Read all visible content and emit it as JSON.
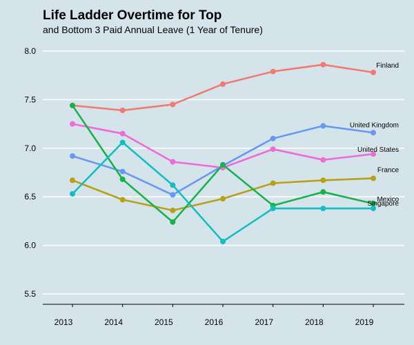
{
  "title": "Life Ladder Overtime for Top",
  "subtitle": "and Bottom 3 Paid Annual Leave (1 Year of Tenure)",
  "chart_data": {
    "type": "line",
    "x": [
      2013,
      2014,
      2015,
      2016,
      2017,
      2018,
      2019
    ],
    "ylim": [
      5.35,
      8.1
    ],
    "yticks": [
      5.5,
      6.0,
      6.5,
      7.0,
      7.5,
      8.0
    ],
    "ytick_labels": [
      "5.5",
      "6.0",
      "6.5",
      "7.0",
      "7.5",
      "8.0"
    ],
    "xtick_labels": [
      "2013",
      "2014",
      "2015",
      "2016",
      "2017",
      "2018",
      "2019"
    ],
    "grid": true,
    "legend": "none (direct labels at line ends)",
    "series": [
      {
        "name": "Finland",
        "color": "#f07b73",
        "values": [
          7.44,
          7.39,
          7.45,
          7.66,
          7.79,
          7.86,
          7.78
        ]
      },
      {
        "name": "United Kingdom",
        "color": "#6699f0",
        "values": [
          6.92,
          6.76,
          6.52,
          6.82,
          7.1,
          7.23,
          7.16
        ]
      },
      {
        "name": "United States",
        "color": "#ee6cd6",
        "values": [
          7.25,
          7.15,
          6.86,
          6.8,
          6.99,
          6.88,
          6.94
        ]
      },
      {
        "name": "France",
        "color": "#b8a017",
        "values": [
          6.67,
          6.47,
          6.36,
          6.48,
          6.64,
          6.67,
          6.69
        ]
      },
      {
        "name": "Mexico",
        "color": "#18b24c",
        "values": [
          7.44,
          6.68,
          6.24,
          6.83,
          6.41,
          6.55,
          6.43
        ]
      },
      {
        "name": "Singapore",
        "color": "#12bfc0",
        "values": [
          6.53,
          7.06,
          6.62,
          6.04,
          6.38,
          6.38,
          6.38
        ]
      }
    ]
  }
}
